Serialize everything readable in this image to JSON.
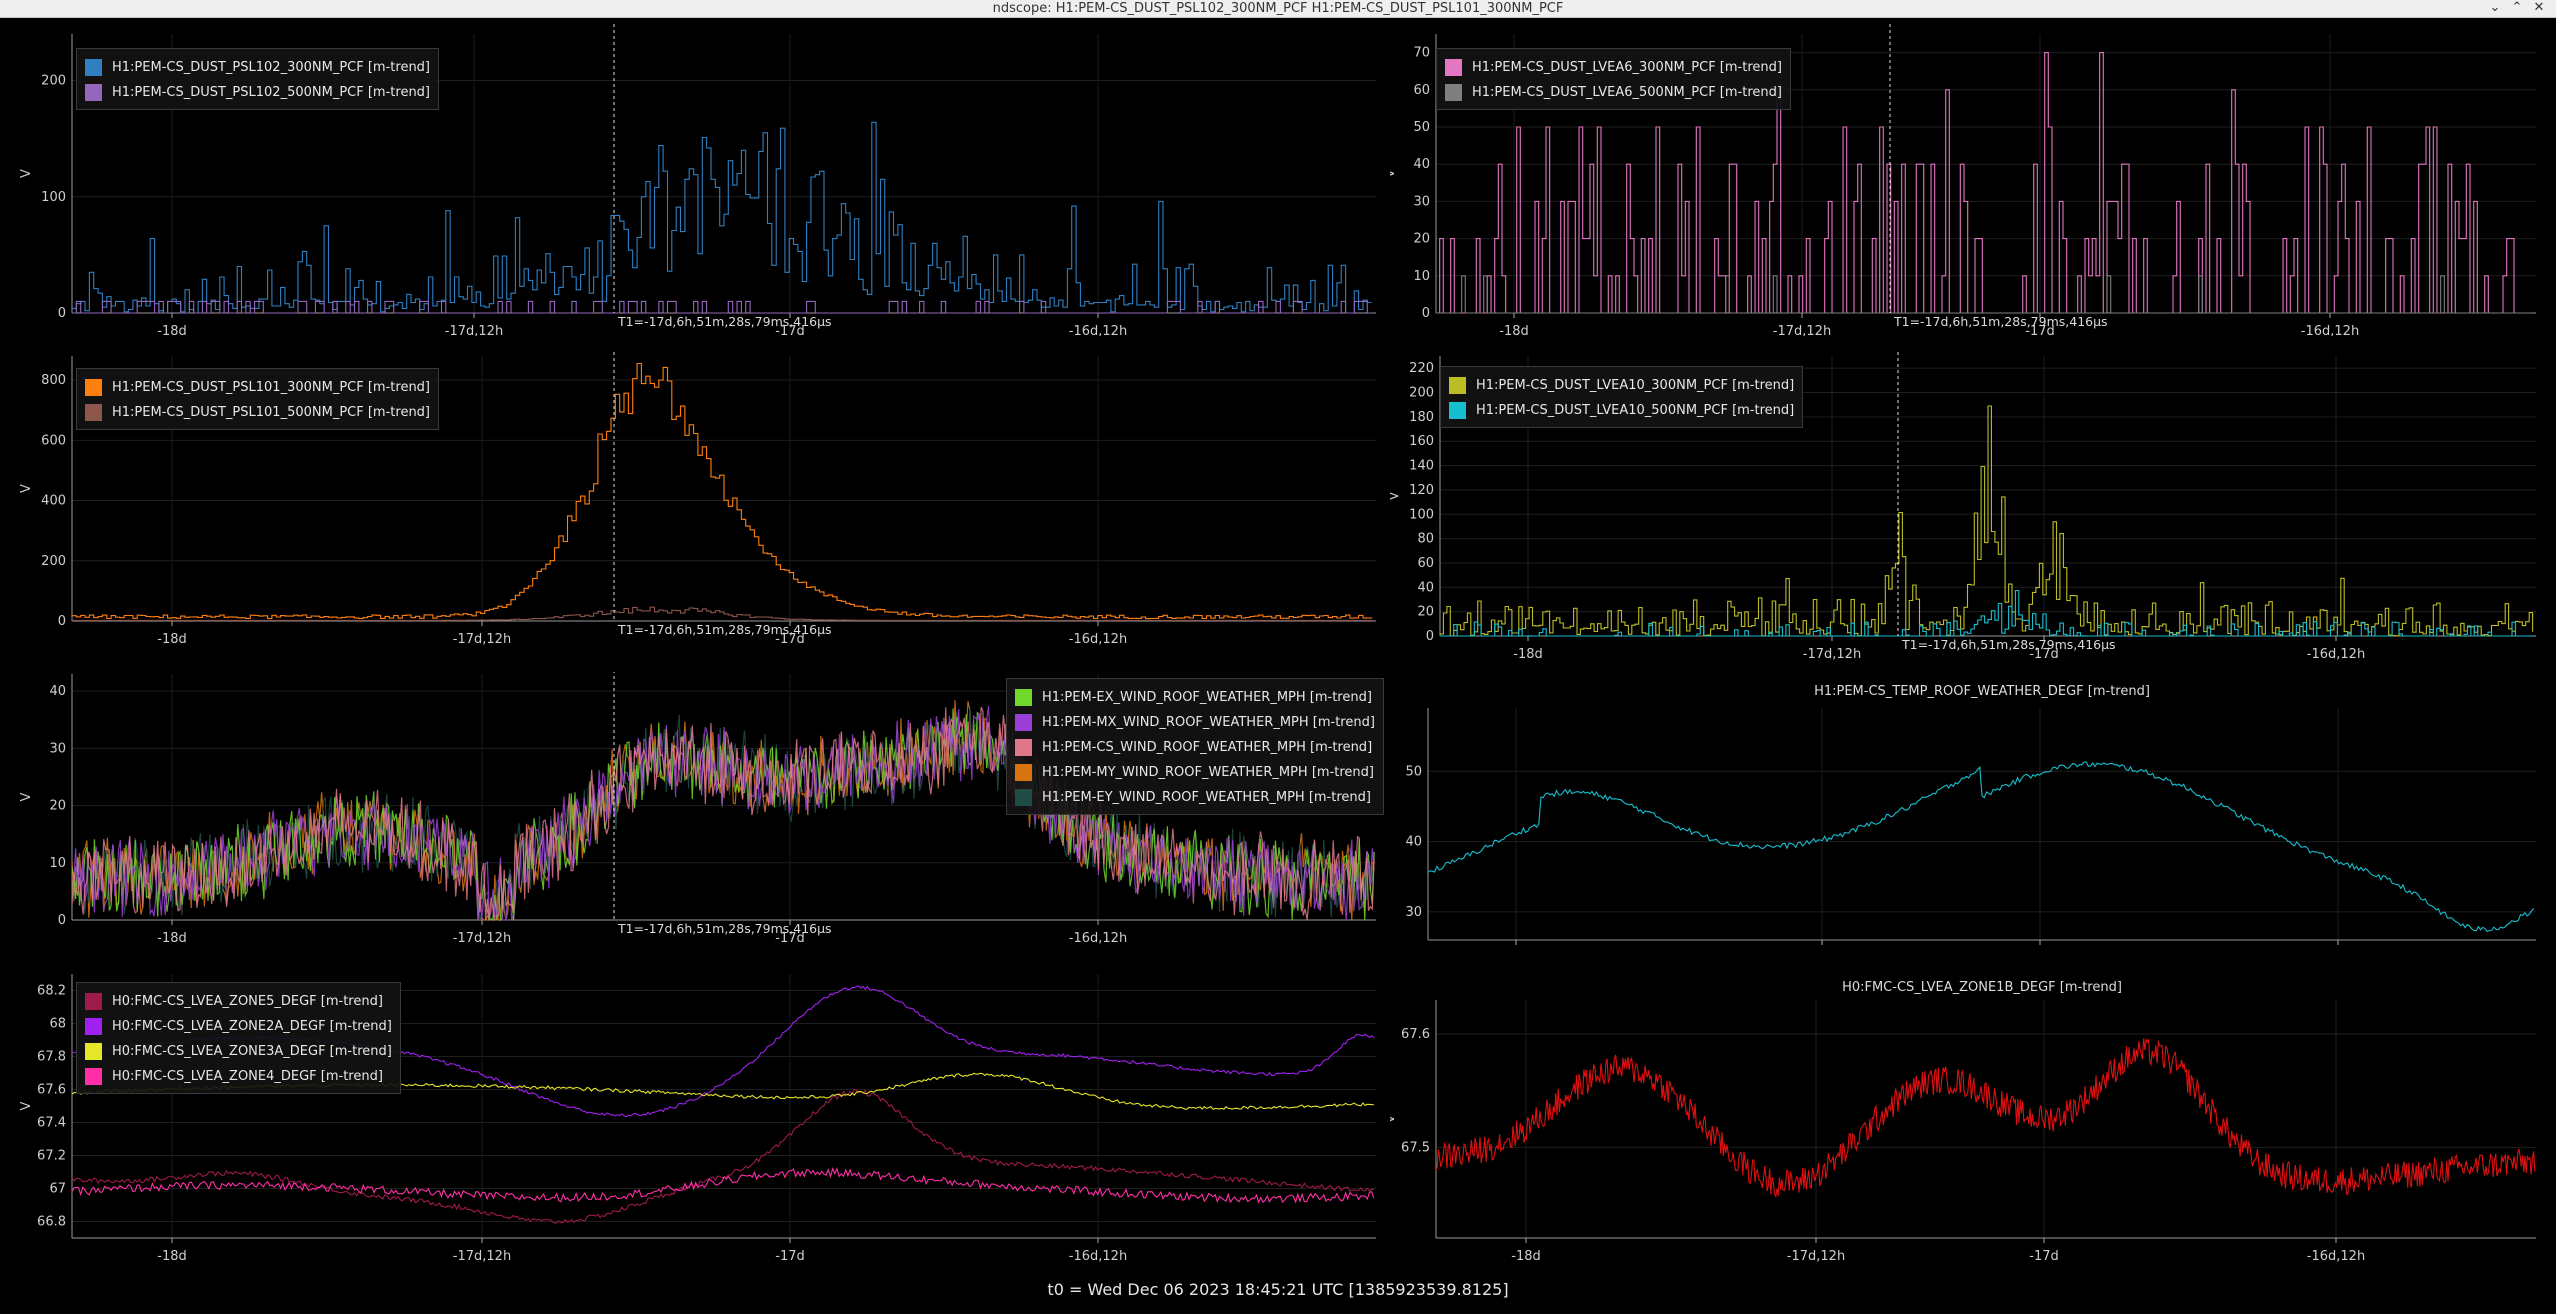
{
  "window": {
    "title": "ndscope: H1:PEM-CS_DUST_PSL102_300NM_PCF H1:PEM-CS_DUST_PSL101_300NM_PCF"
  },
  "footer": {
    "t0": "t0 = Wed Dec 06 2023 18:45:21 UTC [1385923539.8125]"
  },
  "cursor_label": "T1=-17d,6h,51m,28s,79ms,416µs",
  "x_ticks": [
    "-18d",
    "-17d,12h",
    "-17d",
    "-16d,12h"
  ],
  "ylabel": "V",
  "panels": [
    {
      "id": "p1",
      "title": "",
      "yticks": [
        "0",
        "100",
        "200"
      ],
      "ymax": 240,
      "legend": [
        {
          "label": "H1:PEM-CS_DUST_PSL102_300NM_PCF [m-trend]",
          "color": "#2f7fc1"
        },
        {
          "label": "H1:PEM-CS_DUST_PSL102_500NM_PCF [m-trend]",
          "color": "#9467bd"
        }
      ]
    },
    {
      "id": "p2",
      "title": "",
      "yticks": [
        "0",
        "10",
        "20",
        "30",
        "40",
        "50",
        "60",
        "70"
      ],
      "ymax": 75,
      "legend": [
        {
          "label": "H1:PEM-CS_DUST_LVEA6_300NM_PCF [m-trend]",
          "color": "#e377c2"
        },
        {
          "label": "H1:PEM-CS_DUST_LVEA6_500NM_PCF [m-trend]",
          "color": "#7f7f7f"
        }
      ]
    },
    {
      "id": "p3",
      "title": "",
      "yticks": [
        "0",
        "200",
        "400",
        "600",
        "800"
      ],
      "ymax": 880,
      "legend": [
        {
          "label": "H1:PEM-CS_DUST_PSL101_300NM_PCF [m-trend]",
          "color": "#ff7f0e"
        },
        {
          "label": "H1:PEM-CS_DUST_PSL101_500NM_PCF [m-trend]",
          "color": "#8c564b"
        }
      ]
    },
    {
      "id": "p4",
      "title": "",
      "yticks": [
        "0",
        "20",
        "40",
        "60",
        "80",
        "100",
        "120",
        "140",
        "160",
        "180",
        "200",
        "220"
      ],
      "ymax": 230,
      "legend": [
        {
          "label": "H1:PEM-CS_DUST_LVEA10_300NM_PCF [m-trend]",
          "color": "#bcbd22"
        },
        {
          "label": "H1:PEM-CS_DUST_LVEA10_500NM_PCF [m-trend]",
          "color": "#17becf"
        }
      ]
    },
    {
      "id": "p5",
      "title": "",
      "yticks": [
        "0",
        "10",
        "20",
        "30",
        "40"
      ],
      "ymax": 43,
      "legend": [
        {
          "label": "H1:PEM-EX_WIND_ROOF_WEATHER_MPH [m-trend]",
          "color": "#6fd82a"
        },
        {
          "label": "H1:PEM-MX_WIND_ROOF_WEATHER_MPH [m-trend]",
          "color": "#9b3fd6"
        },
        {
          "label": "H1:PEM-CS_WIND_ROOF_WEATHER_MPH [m-trend]",
          "color": "#e0788a"
        },
        {
          "label": "H1:PEM-MY_WIND_ROOF_WEATHER_MPH [m-trend]",
          "color": "#d9730d"
        },
        {
          "label": "H1:PEM-EY_WIND_ROOF_WEATHER_MPH [m-trend]",
          "color": "#1f4d45"
        }
      ]
    },
    {
      "id": "p6",
      "title": "H1:PEM-CS_TEMP_ROOF_WEATHER_DEGF [m-trend]",
      "yticks": [
        "30",
        "40",
        "50"
      ],
      "ymin": 26,
      "ymax": 59,
      "legend": []
    },
    {
      "id": "p7",
      "title": "",
      "yticks": [
        "66.8",
        "67",
        "67.2",
        "67.4",
        "67.6",
        "67.8",
        "68",
        "68.2"
      ],
      "ymin": 66.7,
      "ymax": 68.3,
      "legend": [
        {
          "label": "H0:FMC-CS_LVEA_ZONE5_DEGF [m-trend]",
          "color": "#9e1a4a"
        },
        {
          "label": "H0:FMC-CS_LVEA_ZONE2A_DEGF [m-trend]",
          "color": "#a020f0"
        },
        {
          "label": "H0:FMC-CS_LVEA_ZONE3A_DEGF [m-trend]",
          "color": "#e5e52a"
        },
        {
          "label": "H0:FMC-CS_LVEA_ZONE4_DEGF [m-trend]",
          "color": "#ff2fa6"
        }
      ]
    },
    {
      "id": "p8",
      "title": "H0:FMC-CS_LVEA_ZONE1B_DEGF [m-trend]",
      "yticks": [
        "67.5",
        "67.6"
      ],
      "ymin": 67.42,
      "ymax": 67.63,
      "legend": []
    }
  ]
}
